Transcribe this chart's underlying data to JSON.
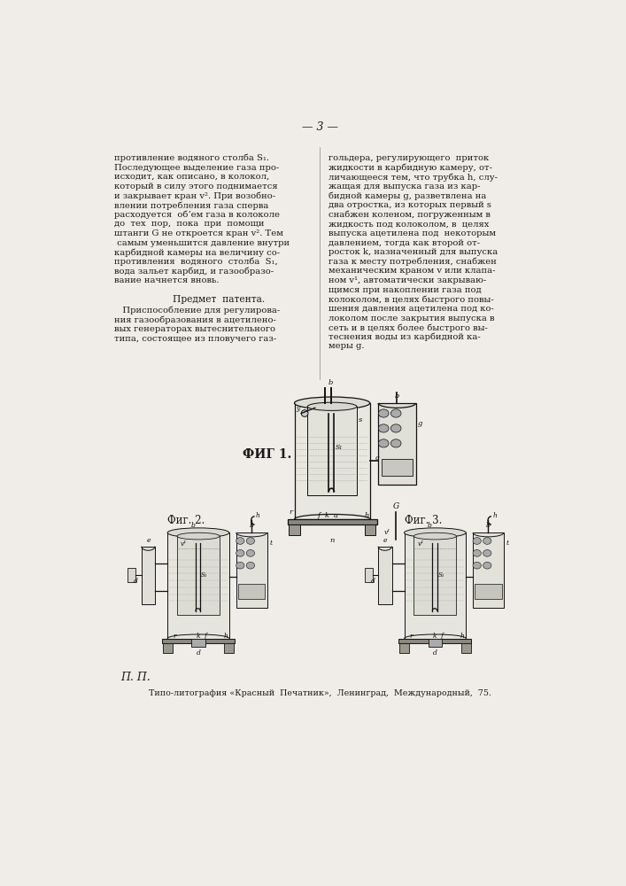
{
  "page_number": "3",
  "background_color": "#f0ede8",
  "text_color": "#1a1a1a",
  "left_column_lines": [
    "противление водяного столба S₁.",
    "Последующее выделение газа про-",
    "исходит, как описано, в колокол,",
    "который в силу этого поднимается",
    "и закрывает кран v². При возобно-",
    "влении потребления газа сперва",
    "расходуется  обʼем газа в колоколе",
    "до  тех  пор,  пока  при  помощи",
    "штанги G не откроется кран v². Тем",
    " самым уменьшится давление внутри",
    "карбидной камеры на величину со-",
    "противления  водяного  столба  S₁,",
    "вода зальет карбид, и газообразо-",
    "вание начнется вновь."
  ],
  "right_column_lines": [
    "гольдера, регулирующего  приток",
    "жидкости в карбидную камеру, от-",
    "личающееся тем, что трубка h, слу-",
    "жащая для выпуска газа из кар-",
    "бидной камеры g, разветвлена на",
    "два отростка, из которых первый s",
    "снабжен коленом, погруженным в",
    "жидкость под колоколом, в  целях",
    "выпуска ацетилена под  некоторым",
    "давлением, тогда как второй от-",
    "росток k, назначенный для выпуска",
    "газа к месту потребления, снабжен",
    "механическим краном v или клапа-",
    "ном v¹, автоматически закрываю-",
    "щимся при накоплении газа под",
    "колоколом, в целях быстрого повы-",
    "шения давления ацетилена под ко-",
    "локолом после закрытия выпуска в",
    "сеть и в целях более быстрого вы-",
    "теснения воды из карбидной ка-",
    "меры g."
  ],
  "subject_header": "Предмет  патента.",
  "subject_lines": [
    "   Приспособление для регулирова-",
    "ния газообразования в ацетилено-",
    "вых генераторах вытеснительного",
    "типа, состоящее из пловучего газ-"
  ],
  "fig1_label": "ФИГ 1.",
  "fig2_label": "Фиг. 2.",
  "fig3_label": "Фиг. 3.",
  "footer_text": "П. П.",
  "printer_text": "Типо-литография «Красный  Печатник»,  Ленинград,  Международный,  75."
}
